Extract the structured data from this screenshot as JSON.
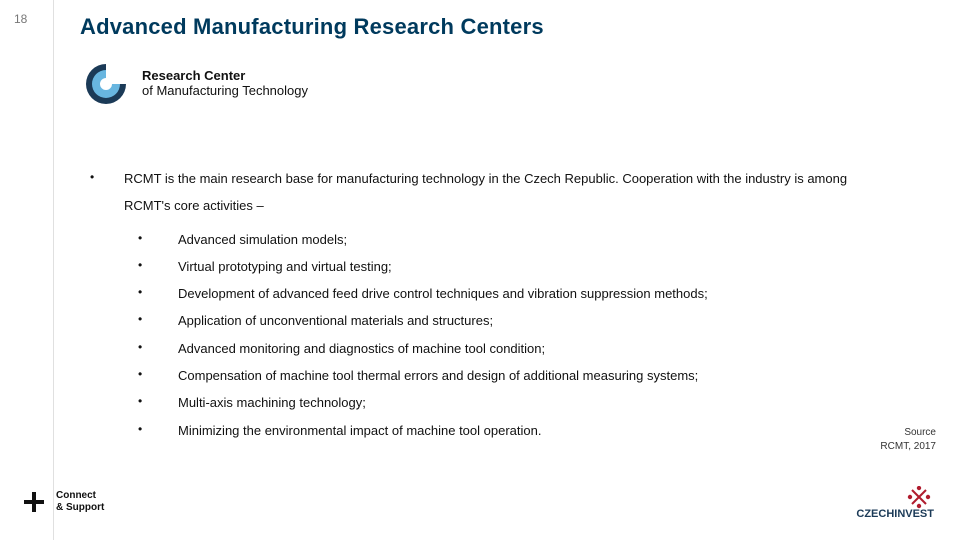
{
  "page_number": "18",
  "title": "Advanced Manufacturing Research Centers",
  "logo": {
    "line1": "Research Center",
    "line2": "of Manufacturing Technology",
    "colors": {
      "outer": "#1b3a57",
      "inner": "#68b6e0"
    }
  },
  "intro": "RCMT is the main research base for manufacturing technology in the Czech Republic. Cooperation with the industry is among RCMT's core activities –",
  "bullets": [
    "Advanced simulation models;",
    "Virtual prototyping and virtual testing;",
    "Development of advanced feed drive control techniques and vibration suppression methods;",
    "Application of unconventional materials and structures;",
    "Advanced monitoring and diagnostics of machine tool condition;",
    "Compensation of machine tool thermal errors and design of additional measuring systems;",
    "Multi-axis machining technology;",
    "Minimizing the environmental impact of machine tool operation."
  ],
  "source": {
    "label": "Source",
    "value": "RCMT, 2017"
  },
  "footer": {
    "connect_line1": "Connect",
    "connect_line2": "& Support",
    "brand_text": "CZECHINVEST",
    "brand_colors": {
      "text": "#1b3a57",
      "accent": "#b01c2e"
    }
  }
}
